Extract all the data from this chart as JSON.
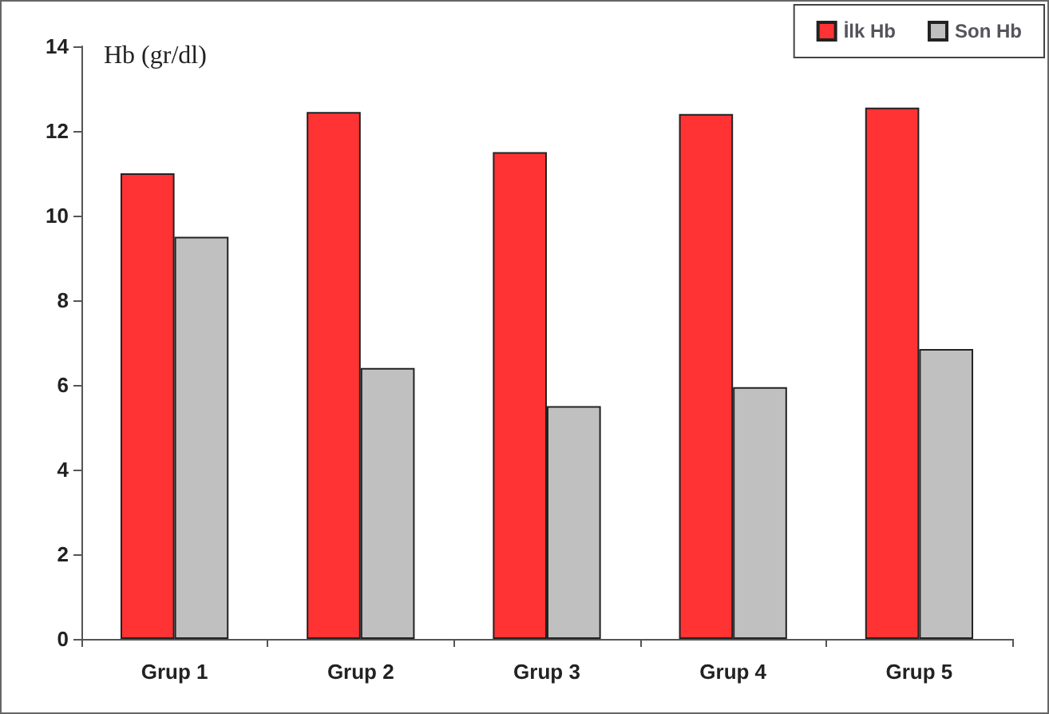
{
  "chart_data": {
    "type": "bar",
    "ylabel": "Hb (gr/dl)",
    "categories": [
      "Grup 1",
      "Grup 2",
      "Grup 3",
      "Grup 4",
      "Grup 5"
    ],
    "series": [
      {
        "name": "İlk Hb",
        "color": "#ff3333",
        "values": [
          11.0,
          12.45,
          11.5,
          12.4,
          12.55
        ]
      },
      {
        "name": "Son Hb",
        "color": "#c0c0c0",
        "values": [
          9.5,
          6.4,
          5.5,
          5.95,
          6.85
        ]
      }
    ],
    "ylim": [
      0,
      14
    ],
    "yticks": [
      0,
      2,
      4,
      6,
      8,
      10,
      12,
      14
    ],
    "grid": false,
    "legend": "top right"
  }
}
